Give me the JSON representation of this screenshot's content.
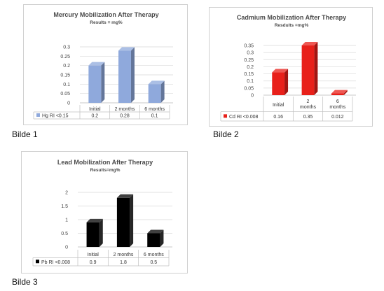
{
  "chart_data": [
    {
      "type": "bar",
      "title": "Mercury Mobilization After Therapy",
      "subtitle": "Results = mg%",
      "categories": [
        "Initial",
        "2 months",
        "6 months"
      ],
      "series": [
        {
          "name": "Hg RI <0.15",
          "values": [
            0.2,
            0.28,
            0.1
          ]
        }
      ],
      "data_labels": [
        "0.2",
        "0.28",
        "0.1"
      ],
      "yticks": [
        "0",
        "0.05",
        "0.1",
        "0.15",
        "0.2",
        "0.25",
        "0.3"
      ],
      "ylim": [
        0,
        0.3
      ],
      "color": "#8fa9dc",
      "legend": "data-table",
      "grid": true
    },
    {
      "type": "bar",
      "title": "Cadmium Mobilization After Therapy",
      "subtitle": "Resdults =mg%",
      "categories": [
        "Initial",
        "2 months",
        "6 months"
      ],
      "series": [
        {
          "name": "Cd RI <0.008",
          "values": [
            0.16,
            0.35,
            0.012
          ]
        }
      ],
      "data_labels": [
        "0.16",
        "0.35",
        "0.012"
      ],
      "yticks": [
        "0",
        "0.05",
        "0.1",
        "0.15",
        "0.2",
        "0.25",
        "0.3",
        "0.35"
      ],
      "ylim": [
        0,
        0.35
      ],
      "color": "#e8201a",
      "legend": "data-table",
      "grid": true
    },
    {
      "type": "bar",
      "title": "Lead Mobilization After Therapy",
      "subtitle": "Results=mg%",
      "categories": [
        "Initial",
        "2 months",
        "6 months"
      ],
      "series": [
        {
          "name": "Pb RI <0.008",
          "values": [
            0.9,
            1.8,
            0.5
          ]
        }
      ],
      "data_labels": [
        "0.9",
        "1.8",
        "0.5"
      ],
      "yticks": [
        "0",
        "0.5",
        "1",
        "1.5",
        "2"
      ],
      "ylim": [
        0,
        2
      ],
      "color": "#000000",
      "legend": "data-table",
      "grid": true
    }
  ],
  "captions": [
    "Bilde 1",
    "Bilde 2",
    "Bilde 3"
  ]
}
